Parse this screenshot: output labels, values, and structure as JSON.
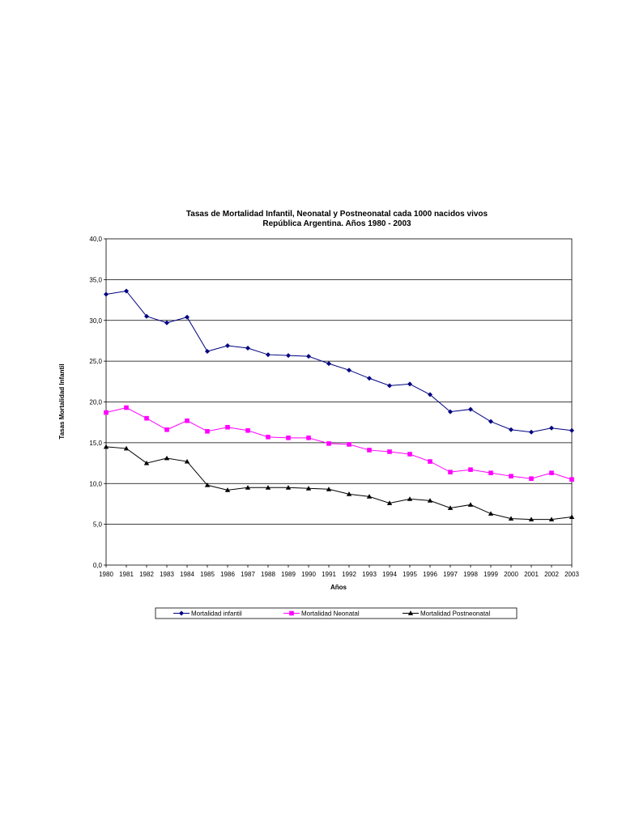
{
  "chart_data": {
    "type": "line",
    "title": "Tasas de Mortalidad Infantil, Neonatal y Postneonatal cada 1000 nacidos vivos",
    "subtitle": "República Argentina. Años 1980 - 2003",
    "xlabel": "Años",
    "ylabel": "Tasas Mortalidad Infantil",
    "ylim": [
      0,
      40
    ],
    "yticks": [
      "0,0",
      "5,0",
      "10,0",
      "15,0",
      "20,0",
      "25,0",
      "30,0",
      "35,0",
      "40,0"
    ],
    "grid": true,
    "legend_position": "bottom",
    "x": [
      "1980",
      "1981",
      "1982",
      "1983",
      "1984",
      "1985",
      "1986",
      "1987",
      "1988",
      "1989",
      "1990",
      "1991",
      "1992",
      "1993",
      "1994",
      "1995",
      "1996",
      "1997",
      "1998",
      "1999",
      "2000",
      "2001",
      "2002",
      "2003"
    ],
    "series": [
      {
        "name": "Mortalidad infantil",
        "color": "#000080",
        "marker": "diamond",
        "values": [
          33.2,
          33.6,
          30.5,
          29.7,
          30.4,
          26.2,
          26.9,
          26.6,
          25.8,
          25.7,
          25.6,
          24.7,
          23.9,
          22.9,
          22.0,
          22.2,
          20.9,
          18.8,
          19.1,
          17.6,
          16.6,
          16.3,
          16.8,
          16.5
        ]
      },
      {
        "name": "Mortalidad Neonatal",
        "color": "#ff00ff",
        "marker": "square",
        "values": [
          18.7,
          19.3,
          18.0,
          16.6,
          17.7,
          16.4,
          16.9,
          16.5,
          15.7,
          15.6,
          15.6,
          14.9,
          14.8,
          14.1,
          13.9,
          13.6,
          12.7,
          11.4,
          11.7,
          11.3,
          10.9,
          10.6,
          11.3,
          10.5
        ]
      },
      {
        "name": "Mortalidad Postneonatal",
        "color": "#000000",
        "marker": "triangle",
        "values": [
          14.5,
          14.3,
          12.5,
          13.1,
          12.7,
          9.8,
          9.2,
          9.5,
          9.5,
          9.5,
          9.4,
          9.3,
          8.7,
          8.4,
          7.6,
          8.1,
          7.9,
          7.0,
          7.4,
          6.3,
          5.7,
          5.6,
          5.6,
          5.9
        ]
      }
    ]
  }
}
